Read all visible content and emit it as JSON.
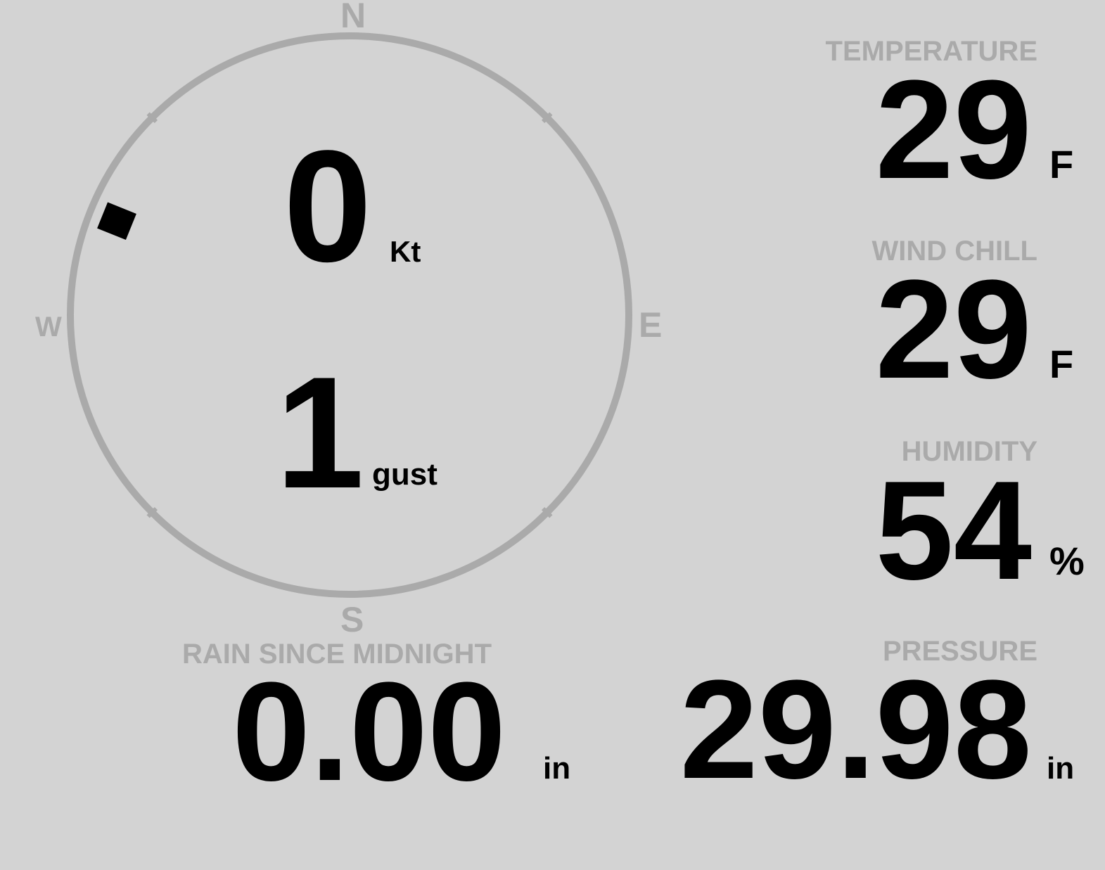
{
  "compass": {
    "north": "N",
    "south": "S",
    "east": "E",
    "west": "W",
    "wind_direction_deg": 292,
    "ring_color": "#aaaaaa",
    "marker_color": "#000000"
  },
  "wind": {
    "speed": "0",
    "speed_unit": "Kt",
    "gust": "1",
    "gust_unit": "gust"
  },
  "temperature": {
    "label": "TEMPERATURE",
    "value": "29",
    "unit": "F"
  },
  "wind_chill": {
    "label": "WIND CHILL",
    "value": "29",
    "unit": "F"
  },
  "humidity": {
    "label": "HUMIDITY",
    "value": "54",
    "unit": "%"
  },
  "rain": {
    "label": "RAIN SINCE MIDNIGHT",
    "value": "0.00",
    "unit": "in"
  },
  "pressure": {
    "label": "PRESSURE",
    "value": "29.98",
    "unit": "in"
  },
  "colors": {
    "background": "#d3d3d3",
    "label": "#aaaaaa",
    "value": "#000000"
  }
}
